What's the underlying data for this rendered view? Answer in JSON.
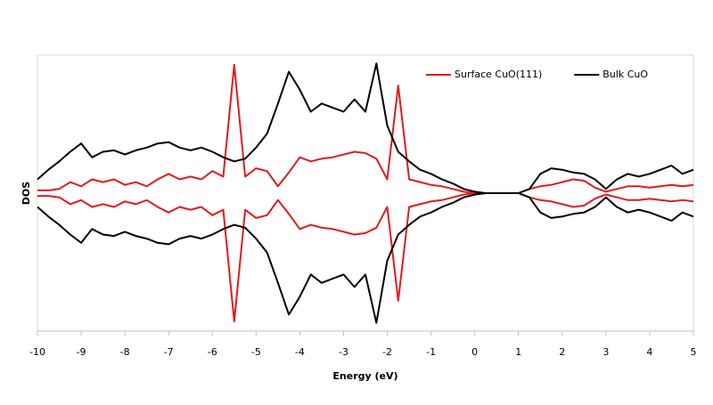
{
  "chart_data": {
    "type": "line",
    "xlabel": "Energy (eV)",
    "ylabel": "DOS",
    "xlim": [
      -10,
      5
    ],
    "xticks": [
      -10,
      -9,
      -8,
      -7,
      -6,
      -5,
      -4,
      -3,
      -2,
      -1,
      0,
      1,
      2,
      3,
      4,
      5
    ],
    "ylim": [
      -10,
      10
    ],
    "grid": false,
    "legend": "upper right",
    "x": [
      -10,
      -9.75,
      -9.5,
      -9.25,
      -9,
      -8.75,
      -8.5,
      -8.25,
      -8,
      -7.75,
      -7.5,
      -7.25,
      -7,
      -6.75,
      -6.5,
      -6.25,
      -6,
      -5.75,
      -5.5,
      -5.25,
      -5,
      -4.75,
      -4.5,
      -4.25,
      -4,
      -3.75,
      -3.5,
      -3.25,
      -3,
      -2.75,
      -2.5,
      -2.25,
      -2,
      -1.75,
      -1.5,
      -1.25,
      -1,
      -0.75,
      -0.5,
      -0.25,
      0,
      0.25,
      0.5,
      0.75,
      1,
      1.25,
      1.5,
      1.75,
      2,
      2.25,
      2.5,
      2.75,
      3,
      3.25,
      3.5,
      3.75,
      4,
      4.25,
      4.5,
      4.75,
      5
    ],
    "series": [
      {
        "name": "Surface CuO(111)",
        "color": "#e31a1c",
        "up": [
          0.2,
          0.2,
          0.3,
          0.8,
          0.5,
          1,
          0.8,
          1,
          0.6,
          0.8,
          0.5,
          1,
          1.4,
          1,
          1.2,
          1,
          1.6,
          1.2,
          9.3,
          1.2,
          1.8,
          1.6,
          0.5,
          1.5,
          2.6,
          2.3,
          2.5,
          2.6,
          2.8,
          3,
          2.9,
          2.5,
          1,
          7.8,
          1,
          0.8,
          0.6,
          0.5,
          0.3,
          0.1,
          0,
          0,
          0,
          0,
          0,
          0.3,
          0.5,
          0.6,
          0.8,
          1,
          0.9,
          0.4,
          0.1,
          0.3,
          0.5,
          0.5,
          0.4,
          0.5,
          0.6,
          0.5,
          0.6
        ],
        "down": [
          -0.2,
          -0.2,
          -0.3,
          -0.8,
          -0.5,
          -1,
          -0.8,
          -1,
          -0.6,
          -0.8,
          -0.5,
          -1,
          -1.4,
          -1,
          -1.2,
          -1,
          -1.6,
          -1.2,
          -9.3,
          -1.2,
          -1.8,
          -1.6,
          -0.5,
          -1.5,
          -2.6,
          -2.3,
          -2.5,
          -2.6,
          -2.8,
          -3,
          -2.9,
          -2.5,
          -1,
          -7.8,
          -1,
          -0.8,
          -0.6,
          -0.5,
          -0.3,
          -0.1,
          0,
          0,
          0,
          0,
          0,
          -0.3,
          -0.5,
          -0.6,
          -0.8,
          -1,
          -0.9,
          -0.4,
          -0.1,
          -0.3,
          -0.5,
          -0.5,
          -0.4,
          -0.5,
          -0.6,
          -0.5,
          -0.6
        ]
      },
      {
        "name": "Bulk CuO",
        "color": "#000000",
        "up": [
          1,
          1.7,
          2.3,
          3,
          3.6,
          2.6,
          3,
          3.1,
          2.8,
          3.1,
          3.3,
          3.6,
          3.7,
          3.3,
          3.1,
          3.3,
          3,
          2.6,
          2.3,
          2.5,
          3.3,
          4.3,
          6.5,
          8.8,
          7.5,
          5.9,
          6.5,
          6.2,
          5.9,
          6.8,
          5.9,
          9.4,
          4.9,
          3,
          2.3,
          1.7,
          1.4,
          1,
          0.7,
          0.3,
          0.1,
          0,
          0,
          0,
          0,
          0.3,
          1.4,
          1.8,
          1.7,
          1.5,
          1.4,
          1,
          0.3,
          1,
          1.4,
          1.2,
          1.4,
          1.7,
          2,
          1.4,
          1.7
        ],
        "down": [
          -1,
          -1.7,
          -2.3,
          -3,
          -3.6,
          -2.6,
          -3,
          -3.1,
          -2.8,
          -3.1,
          -3.3,
          -3.6,
          -3.7,
          -3.3,
          -3.1,
          -3.3,
          -3,
          -2.6,
          -2.3,
          -2.5,
          -3.3,
          -4.3,
          -6.5,
          -8.8,
          -7.5,
          -5.9,
          -6.5,
          -6.2,
          -5.9,
          -6.8,
          -5.9,
          -9.4,
          -4.9,
          -3,
          -2.3,
          -1.7,
          -1.4,
          -1,
          -0.7,
          -0.3,
          -0.1,
          0,
          0,
          0,
          0,
          -0.3,
          -1.4,
          -1.8,
          -1.7,
          -1.5,
          -1.4,
          -1,
          -0.3,
          -1,
          -1.4,
          -1.2,
          -1.4,
          -1.7,
          -2,
          -1.4,
          -1.7
        ]
      }
    ]
  }
}
